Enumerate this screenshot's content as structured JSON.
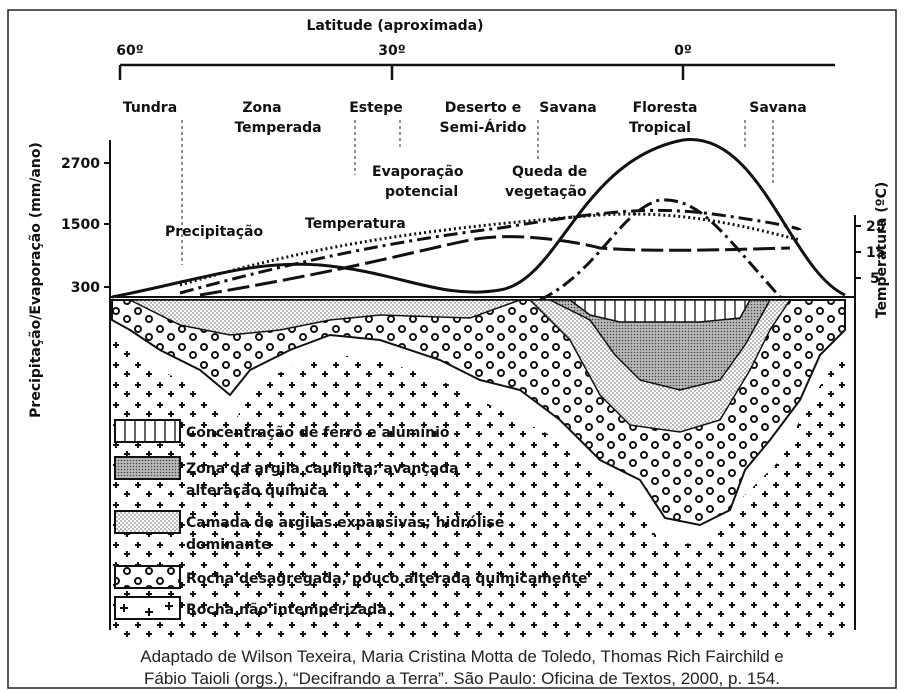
{
  "header": {
    "title": "Latitude (aproximada)"
  },
  "latitude_ticks": [
    "60º",
    "30º",
    "0º"
  ],
  "zones": [
    {
      "lines": [
        "Tundra"
      ]
    },
    {
      "lines": [
        "Zona",
        "Temperada"
      ]
    },
    {
      "lines": [
        "Estepe"
      ]
    },
    {
      "lines": [
        "Deserto e",
        "Semi-Árido"
      ]
    },
    {
      "lines": [
        "Savana"
      ]
    },
    {
      "lines": [
        "Floresta",
        "Tropical"
      ]
    },
    {
      "lines": [
        "Savana"
      ]
    }
  ],
  "left_axis": {
    "label": "Precipitação/Evaporação (mm/ano)",
    "ticks": [
      "2700",
      "1500",
      "300"
    ]
  },
  "right_axis": {
    "label": "Temperatura (ºC)",
    "ticks": [
      "25",
      "15",
      "5"
    ]
  },
  "annotations": [
    {
      "lines": [
        "Evaporação",
        "potencial"
      ]
    },
    {
      "lines": [
        "Queda de",
        "vegetação"
      ]
    },
    {
      "lines": [
        "Precipitação"
      ]
    },
    {
      "lines": [
        "Temperatura"
      ]
    }
  ],
  "legend": [
    {
      "lines": [
        "Concentração de ferro e alumínio"
      ]
    },
    {
      "lines": [
        "Zona da argila caulinita; avançada",
        "alteração química"
      ]
    },
    {
      "lines": [
        "Camada de argilas expansivas; hidrólise",
        "dominante"
      ]
    },
    {
      "lines": [
        "Rocha desagregada, pouco alterada quimicamente"
      ]
    },
    {
      "lines": [
        "Rocha não intemperizada"
      ]
    }
  ],
  "caption": {
    "lines": [
      "Adaptado de Wilson Texeira, Maria Cristina Motta de Toledo, Thomas Rich Fairchild e",
      "Fábio Taioli (orgs.), “Decifrando a Terra”. São Paulo: Oficina de Textos, 2000, p. 154."
    ]
  }
}
